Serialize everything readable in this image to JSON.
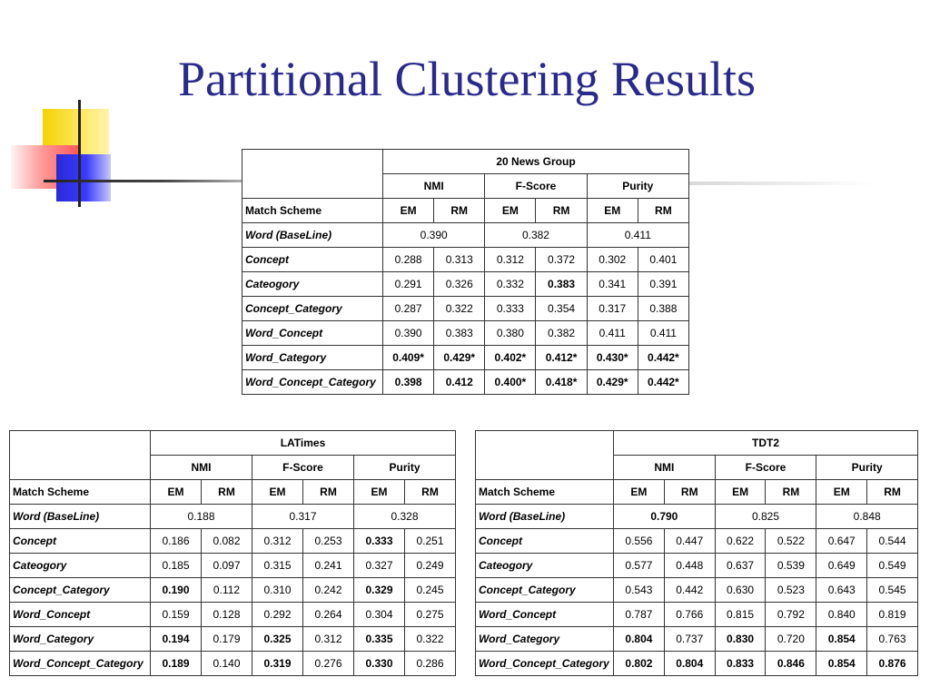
{
  "title": "Partitional Clustering Results",
  "metrics": [
    "NMI",
    "F-Score",
    "Purity"
  ],
  "subcols": [
    "EM",
    "RM"
  ],
  "match_scheme_label": "Match Scheme",
  "tables": {
    "news": {
      "name": "20 News Group",
      "baseline": {
        "label": "Word  (BaseLine)",
        "values": [
          "0.390",
          "0.382",
          "0.411"
        ]
      },
      "rows": [
        {
          "label": "Concept",
          "cells": [
            "0.288",
            "0.313",
            "0.312",
            "0.372",
            "0.302",
            "0.401"
          ]
        },
        {
          "label": "Cateogory",
          "cells": [
            "0.291",
            "0.326",
            "0.332",
            "0.383",
            "0.341",
            "0.391"
          ]
        },
        {
          "label": "Concept_Category",
          "cells": [
            "0.287",
            "0.322",
            "0.333",
            "0.354",
            "0.317",
            "0.388"
          ]
        },
        {
          "label": "Word_Concept",
          "cells": [
            "0.390",
            "0.383",
            "0.380",
            "0.382",
            "0.411",
            "0.411"
          ]
        },
        {
          "label": "Word_Category",
          "cells": [
            "0.409*",
            "0.429*",
            "0.402*",
            "0.412*",
            "0.430*",
            "0.442*"
          ]
        },
        {
          "label": "Word_Concept_Category",
          "cells": [
            "0.398",
            "0.412",
            "0.400*",
            "0.418*",
            "0.429*",
            "0.442*"
          ]
        }
      ]
    },
    "latimes": {
      "name": "LATimes",
      "baseline": {
        "label": "Word  (BaseLine)",
        "values": [
          "0.188",
          "0.317",
          "0.328"
        ]
      },
      "rows": [
        {
          "label": "Concept",
          "cells": [
            "0.186",
            "0.082",
            "0.312",
            "0.253",
            "0.333",
            "0.251"
          ]
        },
        {
          "label": "Cateogory",
          "cells": [
            "0.185",
            "0.097",
            "0.315",
            "0.241",
            "0.327",
            "0.249"
          ]
        },
        {
          "label": "Concept_Category",
          "cells": [
            "0.190",
            "0.112",
            "0.310",
            "0.242",
            "0.329",
            "0.245"
          ]
        },
        {
          "label": "Word_Concept",
          "cells": [
            "0.159",
            "0.128",
            "0.292",
            "0.264",
            "0.304",
            "0.275"
          ]
        },
        {
          "label": "Word_Category",
          "cells": [
            "0.194",
            "0.179",
            "0.325",
            "0.312",
            "0.335",
            "0.322"
          ]
        },
        {
          "label": "Word_Concept_Category",
          "cells": [
            "0.189",
            "0.140",
            "0.319",
            "0.276",
            "0.330",
            "0.286"
          ]
        }
      ]
    },
    "tdt2": {
      "name": "TDT2",
      "baseline": {
        "label": "Word  (BaseLine)",
        "values": [
          "0.790",
          "0.825",
          "0.848"
        ]
      },
      "rows": [
        {
          "label": "Concept",
          "cells": [
            "0.556",
            "0.447",
            "0.622",
            "0.522",
            "0.647",
            "0.544"
          ]
        },
        {
          "label": "Cateogory",
          "cells": [
            "0.577",
            "0.448",
            "0.637",
            "0.539",
            "0.649",
            "0.549"
          ]
        },
        {
          "label": "Concept_Category",
          "cells": [
            "0.543",
            "0.442",
            "0.630",
            "0.523",
            "0.643",
            "0.545"
          ]
        },
        {
          "label": "Word_Concept",
          "cells": [
            "0.787",
            "0.766",
            "0.815",
            "0.792",
            "0.840",
            "0.819"
          ]
        },
        {
          "label": "Word_Category",
          "cells": [
            "0.804",
            "0.737",
            "0.830",
            "0.720",
            "0.854",
            "0.763"
          ]
        },
        {
          "label": "Word_Concept_Category",
          "cells": [
            "0.802",
            "0.804",
            "0.833",
            "0.846",
            "0.854",
            "0.876"
          ]
        }
      ]
    }
  }
}
